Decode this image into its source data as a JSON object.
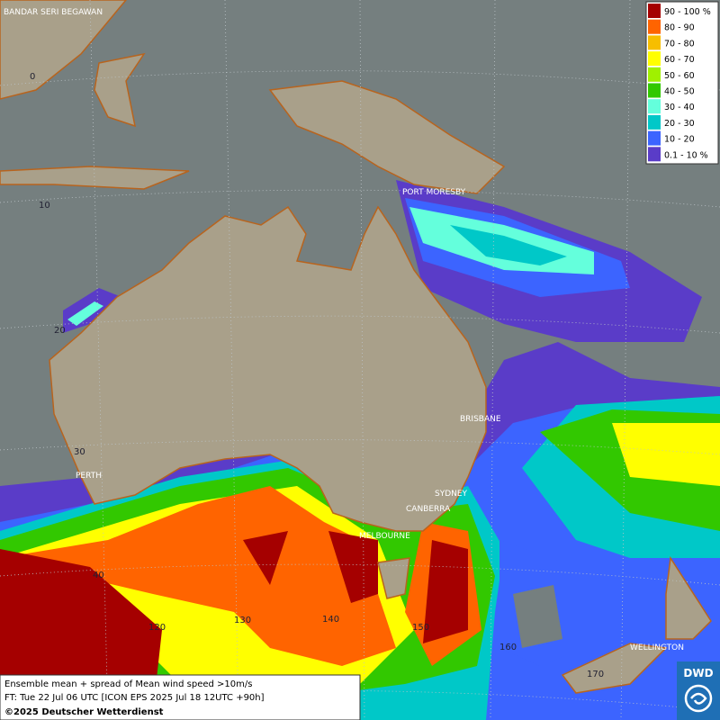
{
  "map": {
    "places": [
      "BANDAR SERI BEGAWAN",
      "PORT MORESBY",
      "BRISBANE",
      "PERTH",
      "SYDNEY",
      "CANBERRA",
      "MELBOURNE",
      "WELLINGTON"
    ],
    "latitudes": [
      "0",
      "10",
      "20",
      "30",
      "40"
    ],
    "longitudes": [
      "120",
      "130",
      "140",
      "150",
      "160",
      "170"
    ]
  },
  "legend": [
    {
      "label": "90 - 100 %",
      "color": "#a50000"
    },
    {
      "label": "80 - 90",
      "color": "#ff6400"
    },
    {
      "label": "70 - 80",
      "color": "#f7be00"
    },
    {
      "label": "60 - 70",
      "color": "#ffff00"
    },
    {
      "label": "50 - 60",
      "color": "#a0f000"
    },
    {
      "label": "40 - 50",
      "color": "#32c800"
    },
    {
      "label": "30 - 40",
      "color": "#64ffdc"
    },
    {
      "label": "20 - 30",
      "color": "#00c8c8"
    },
    {
      "label": "10 - 20",
      "color": "#3c64ff"
    },
    {
      "label": "0.1 - 10 %",
      "color": "#5a3cc8"
    }
  ],
  "footer": [
    "Ensemble mean + spread of Mean wind speed >10m/s",
    "FT: Tue 22 Jul 06 UTC [ICON EPS 2025 Jul 18 12UTC +90h]",
    "©2025 Deutscher Wetterdienst"
  ],
  "logo": "DWD"
}
